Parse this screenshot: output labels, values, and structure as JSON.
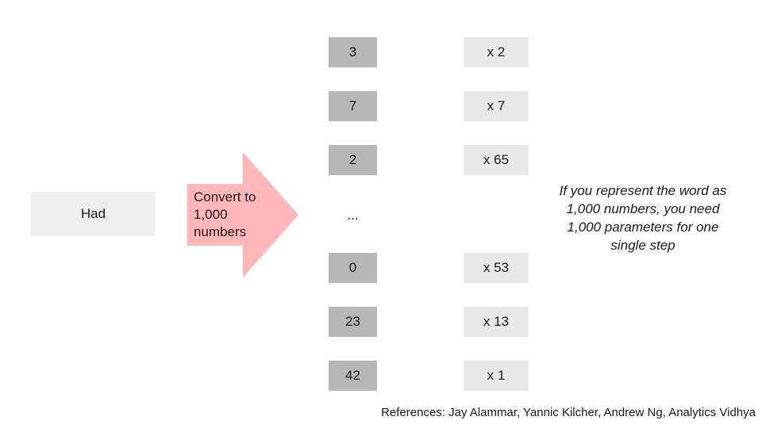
{
  "word": "Had",
  "arrow": {
    "label_lines": [
      "Convert to",
      "1,000",
      "numbers"
    ],
    "color": "#ffb7b9"
  },
  "numbers": [
    "3",
    "7",
    "2",
    "0",
    "23",
    "42"
  ],
  "ellipsis": "...",
  "multipliers": [
    "x 2",
    "x 7",
    "x 65",
    "x 53",
    "x 13",
    "x 1"
  ],
  "note": "If you represent the word as 1,000 numbers, you need 1,000 parameters for one single step",
  "references": "References: Jay Alammar, Yannic Kilcher, Andrew Ng, Analytics Vidhya",
  "colors": {
    "number_box": "#b7b7b7",
    "multiplier_box": "#e8e8e8",
    "word_box": "#efefef"
  }
}
